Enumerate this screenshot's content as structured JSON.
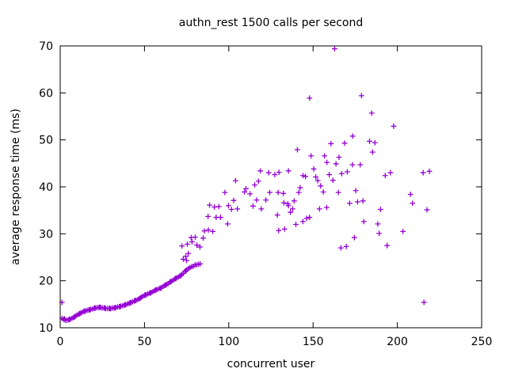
{
  "chart_data": {
    "type": "scatter",
    "title": "authn_rest 1500 calls per second",
    "xlabel": "concurrent user",
    "ylabel": "average response time (ms)",
    "xlim": [
      0,
      250
    ],
    "ylim": [
      10,
      70
    ],
    "xticks": [
      0,
      50,
      100,
      150,
      200,
      250
    ],
    "yticks": [
      10,
      20,
      30,
      40,
      50,
      60,
      70
    ],
    "grid": false,
    "legend_position": "none",
    "marker": "plus",
    "marker_color": "#9400d3",
    "series": [
      {
        "name": "average response time",
        "color": "#9400d3",
        "points": [
          [
            1,
            15.4
          ],
          [
            1,
            12.0
          ],
          [
            2,
            11.8
          ],
          [
            2.5,
            11.9
          ],
          [
            3,
            11.6
          ],
          [
            4,
            11.6
          ],
          [
            5,
            11.7
          ],
          [
            5.5,
            11.8
          ],
          [
            6,
            11.8
          ],
          [
            7,
            12.0
          ],
          [
            8,
            12.2
          ],
          [
            8.5,
            12.3
          ],
          [
            9,
            12.5
          ],
          [
            10,
            12.7
          ],
          [
            11,
            12.9
          ],
          [
            11.5,
            13.0
          ],
          [
            12,
            13.1
          ],
          [
            13,
            13.3
          ],
          [
            14,
            13.5
          ],
          [
            14.5,
            13.5
          ],
          [
            15,
            13.6
          ],
          [
            16,
            13.7
          ],
          [
            17,
            13.8
          ],
          [
            17.5,
            13.8
          ],
          [
            18,
            13.9
          ],
          [
            19,
            14.0
          ],
          [
            20,
            14.1
          ],
          [
            20.5,
            14.2
          ],
          [
            21,
            14.2
          ],
          [
            22,
            14.3
          ],
          [
            23,
            14.3
          ],
          [
            23.5,
            14.4
          ],
          [
            24,
            14.3
          ],
          [
            25,
            14.2
          ],
          [
            26,
            14.2
          ],
          [
            26.5,
            14.2
          ],
          [
            27,
            14.1
          ],
          [
            28,
            14.1
          ],
          [
            29,
            14.1
          ],
          [
            29.5,
            14.1
          ],
          [
            30,
            14.1
          ],
          [
            31,
            14.2
          ],
          [
            32,
            14.2
          ],
          [
            32.5,
            14.3
          ],
          [
            33,
            14.3
          ],
          [
            34,
            14.4
          ],
          [
            35,
            14.5
          ],
          [
            35.5,
            14.5
          ],
          [
            36,
            14.6
          ],
          [
            37,
            14.7
          ],
          [
            38,
            14.8
          ],
          [
            38.5,
            14.9
          ],
          [
            39,
            14.9
          ],
          [
            40,
            15.1
          ],
          [
            41,
            15.2
          ],
          [
            41.5,
            15.3
          ],
          [
            42,
            15.4
          ],
          [
            43,
            15.5
          ],
          [
            44,
            15.7
          ],
          [
            44.5,
            15.8
          ],
          [
            45,
            15.8
          ],
          [
            46,
            16.0
          ],
          [
            47,
            16.2
          ],
          [
            47.5,
            16.3
          ],
          [
            48,
            16.5
          ],
          [
            49,
            16.7
          ],
          [
            50,
            16.9
          ],
          [
            50.5,
            17.0
          ],
          [
            51,
            17.0
          ],
          [
            52,
            17.2
          ],
          [
            53,
            17.4
          ],
          [
            53.5,
            17.4
          ],
          [
            54,
            17.5
          ],
          [
            55,
            17.7
          ],
          [
            56,
            17.9
          ],
          [
            56.5,
            18.0
          ],
          [
            57,
            18.1
          ],
          [
            58,
            18.2
          ],
          [
            59,
            18.4
          ],
          [
            59.5,
            18.4
          ],
          [
            60,
            18.5
          ],
          [
            61,
            18.8
          ],
          [
            62,
            19.0
          ],
          [
            62.5,
            19.1
          ],
          [
            63,
            19.2
          ],
          [
            64,
            19.4
          ],
          [
            65,
            19.7
          ],
          [
            65.5,
            19.8
          ],
          [
            66,
            19.9
          ],
          [
            67,
            20.1
          ],
          [
            68,
            20.4
          ],
          [
            68.5,
            20.5
          ],
          [
            69,
            20.6
          ],
          [
            70,
            20.8
          ],
          [
            71,
            21.0
          ],
          [
            71.5,
            21.1
          ],
          [
            72,
            21.3
          ],
          [
            73,
            21.6
          ],
          [
            74,
            22.0
          ],
          [
            74.5,
            22.1
          ],
          [
            75,
            22.3
          ],
          [
            76,
            22.6
          ],
          [
            77,
            22.8
          ],
          [
            78,
            23.0
          ],
          [
            79,
            23.1
          ],
          [
            80,
            23.4
          ],
          [
            81,
            23.4
          ],
          [
            82,
            23.5
          ],
          [
            83,
            23.6
          ],
          [
            72.2,
            27.4
          ],
          [
            73,
            24.6
          ],
          [
            75,
            24.3
          ],
          [
            74.5,
            25.2
          ],
          [
            76,
            25.8
          ],
          [
            75.4,
            27.8
          ],
          [
            77.7,
            29.2
          ],
          [
            78.2,
            28.3
          ],
          [
            80.1,
            29.3
          ],
          [
            81.1,
            27.6
          ],
          [
            82.9,
            27.2
          ],
          [
            84.8,
            29.1
          ],
          [
            85.5,
            30.6
          ],
          [
            87.9,
            30.8
          ],
          [
            90.5,
            30.5
          ],
          [
            87.7,
            33.7
          ],
          [
            92.5,
            33.5
          ],
          [
            95.1,
            33.5
          ],
          [
            99.3,
            32.1
          ],
          [
            88.6,
            36.1
          ],
          [
            91.5,
            35.7
          ],
          [
            94.1,
            35.8
          ],
          [
            99.8,
            36.0
          ],
          [
            101.6,
            35.2
          ],
          [
            105.1,
            35.3
          ],
          [
            97.7,
            38.8
          ],
          [
            102.9,
            37.1
          ],
          [
            109.3,
            38.9
          ],
          [
            112.6,
            38.5
          ],
          [
            114.4,
            35.9
          ],
          [
            116.5,
            37.2
          ],
          [
            119.3,
            35.3
          ],
          [
            122.0,
            37.2
          ],
          [
            124.3,
            38.8
          ],
          [
            104.0,
            41.3
          ],
          [
            110.2,
            39.6
          ],
          [
            115.4,
            40.4
          ],
          [
            117.6,
            41.2
          ],
          [
            118.7,
            43.4
          ],
          [
            123.7,
            43.0
          ],
          [
            127.3,
            42.6
          ],
          [
            128.8,
            34.0
          ],
          [
            129.3,
            38.8
          ],
          [
            129.6,
            30.7
          ],
          [
            129.8,
            43.1
          ],
          [
            132.4,
            38.6
          ],
          [
            132.7,
            36.6
          ],
          [
            133.1,
            31.0
          ],
          [
            135.0,
            36.4
          ],
          [
            135.4,
            36.0
          ],
          [
            135.4,
            43.4
          ],
          [
            136.6,
            34.6
          ],
          [
            137.9,
            35.3
          ],
          [
            138.8,
            37.0
          ],
          [
            139.8,
            32.0
          ],
          [
            140.7,
            47.9
          ],
          [
            141.5,
            38.8
          ],
          [
            142.3,
            39.8
          ],
          [
            144.0,
            32.6
          ],
          [
            144.0,
            42.4
          ],
          [
            145.5,
            42.2
          ],
          [
            146.2,
            33.3
          ],
          [
            147.9,
            33.5
          ],
          [
            147.9,
            58.9
          ],
          [
            148.8,
            46.6
          ],
          [
            150.4,
            43.8
          ],
          [
            151.6,
            42.1
          ],
          [
            152.8,
            41.3
          ],
          [
            153.8,
            35.3
          ],
          [
            154.5,
            40.2
          ],
          [
            156.1,
            38.9
          ],
          [
            156.8,
            46.6
          ],
          [
            158.1,
            35.6
          ],
          [
            158.2,
            45.2
          ],
          [
            159.6,
            42.6
          ],
          [
            160.6,
            49.2
          ],
          [
            161.8,
            41.4
          ],
          [
            162.8,
            69.4
          ],
          [
            163.6,
            44.9
          ],
          [
            165.0,
            38.8
          ],
          [
            165.4,
            46.3
          ],
          [
            166.5,
            27.0
          ],
          [
            167.0,
            42.8
          ],
          [
            168.7,
            49.3
          ],
          [
            169.7,
            27.3
          ],
          [
            170.3,
            43.2
          ],
          [
            171.7,
            36.5
          ],
          [
            173.4,
            44.7
          ],
          [
            173.5,
            50.8
          ],
          [
            174.5,
            29.2
          ],
          [
            175.3,
            39.2
          ],
          [
            176.4,
            36.8
          ],
          [
            178.0,
            44.7
          ],
          [
            178.7,
            59.4
          ],
          [
            179.6,
            37.0
          ],
          [
            180.1,
            32.6
          ],
          [
            183.5,
            49.7
          ],
          [
            184.8,
            55.7
          ],
          [
            185.3,
            47.4
          ],
          [
            186.7,
            49.4
          ],
          [
            188.4,
            32.1
          ],
          [
            189.2,
            30.1
          ],
          [
            190.0,
            35.2
          ],
          [
            192.8,
            42.4
          ],
          [
            193.9,
            27.5
          ],
          [
            195.9,
            43.0
          ],
          [
            197.8,
            52.9
          ],
          [
            203.3,
            30.5
          ],
          [
            207.8,
            38.4
          ],
          [
            209.0,
            36.5
          ],
          [
            215.3,
            43.0
          ],
          [
            215.8,
            15.4
          ],
          [
            217.6,
            35.1
          ],
          [
            219.0,
            43.3
          ]
        ]
      }
    ]
  }
}
